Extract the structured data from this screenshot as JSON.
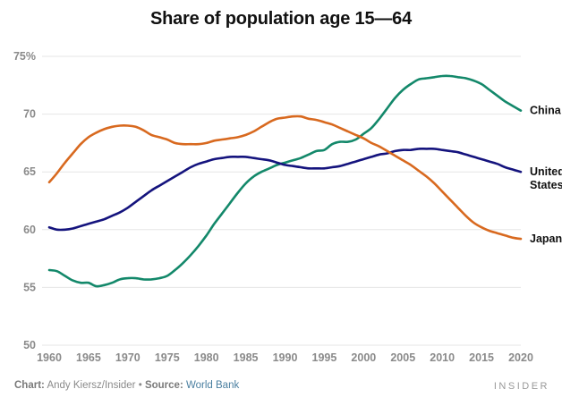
{
  "chart_data": {
    "type": "line",
    "title": "Share of population age 15—64",
    "xlabel": "",
    "ylabel": "",
    "xlim": [
      1960,
      2020
    ],
    "ylim": [
      50,
      75
    ],
    "x_ticks": [
      1960,
      1965,
      1970,
      1975,
      1980,
      1985,
      1990,
      1995,
      2000,
      2005,
      2010,
      2015,
      2020
    ],
    "x_tick_labels": [
      "1960",
      "1965",
      "1970",
      "1975",
      "1980",
      "1985",
      "1990",
      "1995",
      "2000",
      "2005",
      "2010",
      "2015",
      "2020"
    ],
    "y_ticks": [
      50,
      55,
      60,
      65,
      70,
      75
    ],
    "y_tick_labels": [
      "50",
      "55",
      "60",
      "65",
      "70",
      "75%"
    ],
    "grid": "horizontal",
    "legend": "direct-labels-right",
    "x": [
      1960,
      1961,
      1962,
      1963,
      1964,
      1965,
      1966,
      1967,
      1968,
      1969,
      1970,
      1971,
      1972,
      1973,
      1974,
      1975,
      1976,
      1977,
      1978,
      1979,
      1980,
      1981,
      1982,
      1983,
      1984,
      1985,
      1986,
      1987,
      1988,
      1989,
      1990,
      1991,
      1992,
      1993,
      1994,
      1995,
      1996,
      1997,
      1998,
      1999,
      2000,
      2001,
      2002,
      2003,
      2004,
      2005,
      2006,
      2007,
      2008,
      2009,
      2010,
      2011,
      2012,
      2013,
      2014,
      2015,
      2016,
      2017,
      2018,
      2019,
      2020
    ],
    "series": [
      {
        "name": "China",
        "label": "China",
        "color": "#13886a",
        "values": [
          56.5,
          56.4,
          56.0,
          55.6,
          55.4,
          55.4,
          55.1,
          55.2,
          55.4,
          55.7,
          55.8,
          55.8,
          55.7,
          55.7,
          55.8,
          56.0,
          56.5,
          57.1,
          57.8,
          58.6,
          59.5,
          60.5,
          61.4,
          62.3,
          63.2,
          64.0,
          64.6,
          65.0,
          65.3,
          65.6,
          65.8,
          66.0,
          66.2,
          66.5,
          66.8,
          66.9,
          67.4,
          67.6,
          67.6,
          67.8,
          68.3,
          68.8,
          69.6,
          70.5,
          71.4,
          72.1,
          72.6,
          73.0,
          73.1,
          73.2,
          73.3,
          73.3,
          73.2,
          73.1,
          72.9,
          72.6,
          72.1,
          71.6,
          71.1,
          70.7,
          70.3
        ]
      },
      {
        "name": "United States",
        "label": "United\nStates",
        "color": "#14137d",
        "values": [
          60.2,
          60.0,
          60.0,
          60.1,
          60.3,
          60.5,
          60.7,
          60.9,
          61.2,
          61.5,
          61.9,
          62.4,
          62.9,
          63.4,
          63.8,
          64.2,
          64.6,
          65.0,
          65.4,
          65.7,
          65.9,
          66.1,
          66.2,
          66.3,
          66.3,
          66.3,
          66.2,
          66.1,
          66.0,
          65.8,
          65.6,
          65.5,
          65.4,
          65.3,
          65.3,
          65.3,
          65.4,
          65.5,
          65.7,
          65.9,
          66.1,
          66.3,
          66.5,
          66.6,
          66.8,
          66.9,
          66.9,
          67.0,
          67.0,
          67.0,
          66.9,
          66.8,
          66.7,
          66.5,
          66.3,
          66.1,
          65.9,
          65.7,
          65.4,
          65.2,
          65.0
        ]
      },
      {
        "name": "Japan",
        "label": "Japan",
        "color": "#d8691f",
        "values": [
          64.1,
          64.9,
          65.8,
          66.6,
          67.4,
          68.0,
          68.4,
          68.7,
          68.9,
          69.0,
          69.0,
          68.9,
          68.6,
          68.2,
          68.0,
          67.8,
          67.5,
          67.4,
          67.4,
          67.4,
          67.5,
          67.7,
          67.8,
          67.9,
          68.0,
          68.2,
          68.5,
          68.9,
          69.3,
          69.6,
          69.7,
          69.8,
          69.8,
          69.6,
          69.5,
          69.3,
          69.1,
          68.8,
          68.5,
          68.2,
          67.9,
          67.5,
          67.2,
          66.8,
          66.4,
          66.0,
          65.6,
          65.1,
          64.6,
          64.0,
          63.3,
          62.6,
          61.9,
          61.2,
          60.6,
          60.2,
          59.9,
          59.7,
          59.5,
          59.3,
          59.2
        ]
      }
    ]
  },
  "footer": {
    "chart_prefix": "Chart:",
    "chart_credit": "Andy Kiersz/Insider",
    "separator": "•",
    "source_prefix": "Source:",
    "source_name": "World Bank"
  },
  "brand": "INSIDER",
  "colors": {
    "grid": "#e6e6e6",
    "tick_text": "#8a8a8a",
    "source_link": "#4a7fa0"
  }
}
